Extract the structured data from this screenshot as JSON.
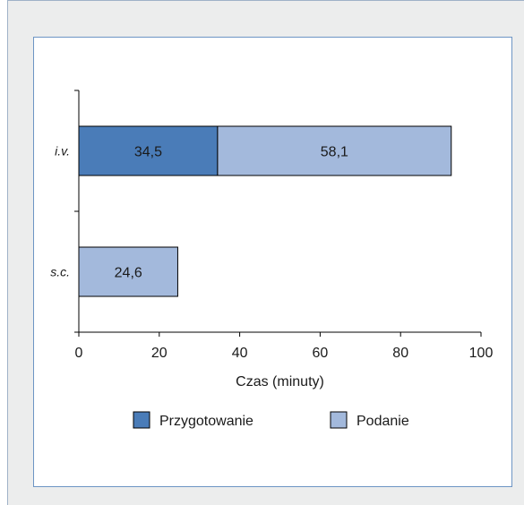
{
  "chart_data": {
    "type": "bar",
    "orientation": "horizontal",
    "stacked": true,
    "categories": [
      "i.v.",
      "s.c."
    ],
    "series": [
      {
        "name": "Przygotowanie",
        "values": [
          34.5,
          0
        ],
        "color": "#4a7cb8"
      },
      {
        "name": "Podanie",
        "values": [
          58.1,
          24.6
        ],
        "color": "#a3b9dc"
      }
    ],
    "data_labels": [
      [
        "34,5",
        null
      ],
      [
        "58,1",
        "24,6"
      ]
    ],
    "xlabel": "Czas (minuty)",
    "ylabel": "",
    "xlim": [
      0,
      100
    ],
    "xticks": [
      0,
      20,
      40,
      60,
      80,
      100
    ],
    "xtick_labels": [
      "0",
      "20",
      "40",
      "60",
      "80",
      "100"
    ],
    "grid": false,
    "legend_position": "bottom"
  }
}
